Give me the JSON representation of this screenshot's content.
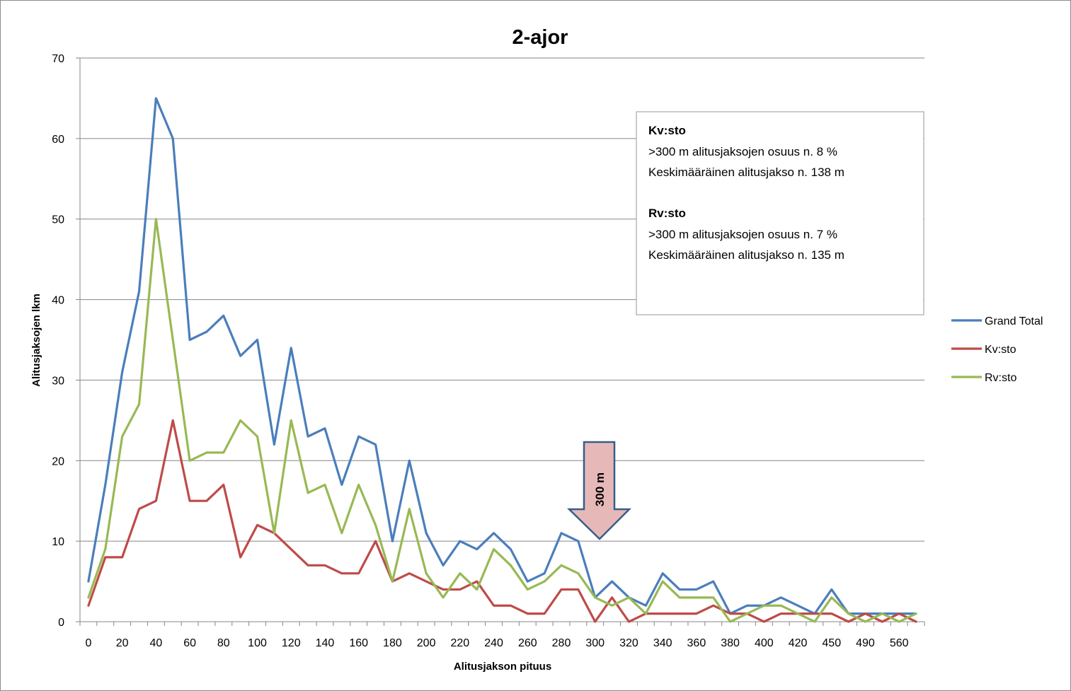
{
  "chart_data": {
    "type": "line",
    "title": "2-ajor",
    "xlabel": "Alitusjakson pituus",
    "ylabel": "Alitusjaksojen lkm",
    "ylim": [
      0,
      70
    ],
    "yticks": [
      0,
      10,
      20,
      30,
      40,
      50,
      60,
      70
    ],
    "grid": true,
    "legend_position": "right",
    "categories": [
      0,
      10,
      20,
      30,
      40,
      50,
      60,
      70,
      80,
      90,
      100,
      110,
      120,
      130,
      140,
      150,
      160,
      170,
      180,
      190,
      200,
      210,
      220,
      230,
      240,
      250,
      260,
      270,
      280,
      290,
      300,
      310,
      320,
      330,
      340,
      350,
      360,
      370,
      380,
      390,
      400,
      410,
      420,
      430,
      450,
      460,
      490,
      510,
      560,
      570
    ],
    "x_tick_labels": [
      "0",
      "20",
      "40",
      "60",
      "80",
      "100",
      "120",
      "140",
      "160",
      "180",
      "200",
      "220",
      "240",
      "260",
      "280",
      "300",
      "320",
      "340",
      "360",
      "380",
      "400",
      "420",
      "450",
      "490",
      "560"
    ],
    "series": [
      {
        "name": "Grand Total",
        "color": "#4a7ebb",
        "values": [
          5,
          17,
          31,
          41,
          65,
          60,
          35,
          36,
          38,
          33,
          35,
          22,
          34,
          23,
          24,
          17,
          23,
          22,
          10,
          20,
          11,
          7,
          10,
          9,
          11,
          9,
          5,
          6,
          11,
          10,
          3,
          5,
          3,
          2,
          6,
          4,
          4,
          5,
          1,
          2,
          2,
          3,
          2,
          1,
          4,
          1,
          1,
          1,
          1,
          1
        ]
      },
      {
        "name": "Kv:sto",
        "color": "#be4b48",
        "values": [
          2,
          8,
          8,
          14,
          15,
          25,
          15,
          15,
          17,
          8,
          12,
          11,
          9,
          7,
          7,
          6,
          6,
          10,
          5,
          6,
          5,
          4,
          4,
          5,
          2,
          2,
          1,
          1,
          4,
          4,
          0,
          3,
          0,
          1,
          1,
          1,
          1,
          2,
          1,
          1,
          0,
          1,
          1,
          1,
          1,
          0,
          1,
          0,
          1,
          0
        ]
      },
      {
        "name": "Rv:sto",
        "color": "#98b954",
        "values": [
          3,
          9,
          23,
          27,
          50,
          35,
          20,
          21,
          21,
          25,
          23,
          11,
          25,
          16,
          17,
          11,
          17,
          12,
          5,
          14,
          6,
          3,
          6,
          4,
          9,
          7,
          4,
          5,
          7,
          6,
          3,
          2,
          3,
          1,
          5,
          3,
          3,
          3,
          0,
          1,
          2,
          2,
          1,
          0,
          3,
          1,
          0,
          1,
          0,
          1
        ]
      }
    ],
    "annotations": {
      "box": [
        {
          "text": "Kv:sto",
          "bold": true
        },
        {
          "text": ">300 m alitusjaksojen osuus n. 8 %",
          "bold": false
        },
        {
          "text": "Keskimääräinen alitusjakso n. 138 m",
          "bold": false
        },
        {
          "text": "Rv:sto",
          "bold": true
        },
        {
          "text": ">300 m alitusjaksojen osuus n. 7 %",
          "bold": false
        },
        {
          "text": "Keskimääräinen alitusjakso n. 135 m",
          "bold": false
        }
      ],
      "arrow_label": "300 m",
      "arrow_color": "#e6b9b8",
      "arrow_border": "#385d8a"
    }
  }
}
